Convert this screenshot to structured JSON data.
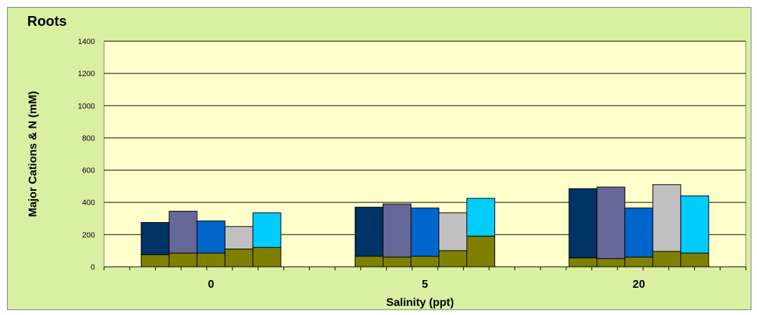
{
  "chart_data": {
    "type": "bar",
    "stacked": true,
    "title": "Roots",
    "xlabel": "Salinity (ppt)",
    "ylabel": "Major Cations & N (mM)",
    "categories": [
      "0",
      "5",
      "20"
    ],
    "ylim": [
      0,
      1400
    ],
    "yticks": [
      0,
      200,
      400,
      600,
      800,
      1000,
      1200,
      1400
    ],
    "ytick_labels": [
      "0",
      "200",
      "400",
      "600",
      "800",
      "1000",
      "1200",
      "1400"
    ],
    "grid": true,
    "legend": "none",
    "bars_per_category": 5,
    "bar_colors": [
      "#003366",
      "#666699",
      "#0066cc",
      "#c0c0c0",
      "#00ccff"
    ],
    "base_color": "#808000",
    "plot_background": "#ffffcc",
    "chart_background": "#d9efa2",
    "base_values": [
      [
        75,
        85,
        85,
        110,
        120
      ],
      [
        65,
        60,
        65,
        100,
        190
      ],
      [
        55,
        50,
        60,
        95,
        85
      ]
    ],
    "totals": [
      [
        275,
        345,
        285,
        250,
        335
      ],
      [
        370,
        390,
        365,
        335,
        425
      ],
      [
        485,
        495,
        365,
        510,
        440
      ]
    ]
  }
}
